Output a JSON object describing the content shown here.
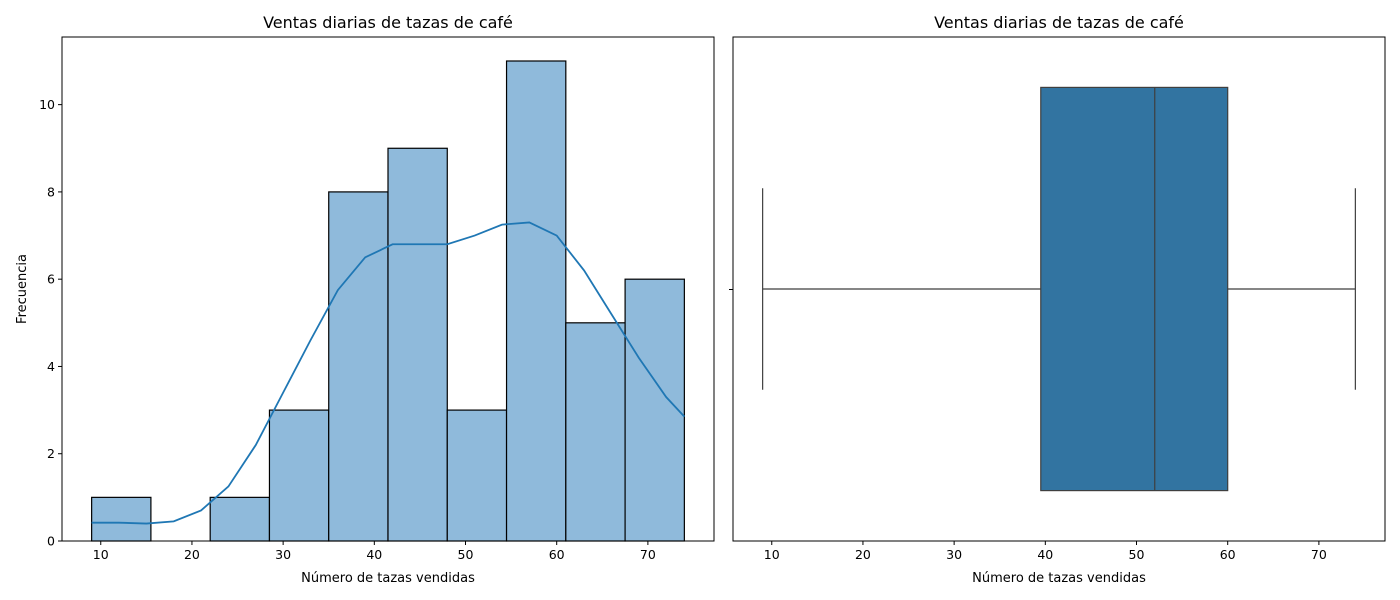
{
  "chart_data": [
    {
      "type": "bar",
      "subtype": "histogram",
      "title": "Ventas diarias de tazas de café",
      "xlabel": "Número de tazas vendidas",
      "ylabel": "Frecuencia",
      "xlim": [
        5.75,
        77.25
      ],
      "ylim": [
        0,
        11.55
      ],
      "xticks": [
        10,
        20,
        30,
        40,
        50,
        60,
        70
      ],
      "yticks": [
        0,
        2,
        4,
        6,
        8,
        10
      ],
      "bins": [
        {
          "x0": 9.0,
          "x1": 15.5,
          "count": 1
        },
        {
          "x0": 15.5,
          "x1": 22.0,
          "count": 0
        },
        {
          "x0": 22.0,
          "x1": 28.5,
          "count": 1
        },
        {
          "x0": 28.5,
          "x1": 35.0,
          "count": 3
        },
        {
          "x0": 35.0,
          "x1": 41.5,
          "count": 8
        },
        {
          "x0": 41.5,
          "x1": 48.0,
          "count": 9
        },
        {
          "x0": 48.0,
          "x1": 54.5,
          "count": 3
        },
        {
          "x0": 54.5,
          "x1": 61.0,
          "count": 11
        },
        {
          "x0": 61.0,
          "x1": 67.5,
          "count": 5
        },
        {
          "x0": 67.5,
          "x1": 74.0,
          "count": 6
        }
      ],
      "kde": {
        "x": [
          9,
          12,
          15,
          18,
          21,
          24,
          27,
          30,
          33,
          36,
          39,
          42,
          45,
          48,
          51,
          54,
          57,
          60,
          63,
          66,
          69,
          72,
          74
        ],
        "y": [
          0.42,
          0.42,
          0.4,
          0.45,
          0.7,
          1.25,
          2.2,
          3.4,
          4.6,
          5.75,
          6.5,
          6.8,
          6.8,
          6.8,
          7.0,
          7.25,
          7.3,
          7.0,
          6.2,
          5.2,
          4.2,
          3.3,
          2.85
        ]
      },
      "colors": {
        "bar_fill": "#8fbadb",
        "bar_edge": "#000000",
        "kde_line": "#1f77b4"
      },
      "grid": false
    },
    {
      "type": "boxplot",
      "title": "Ventas diarias de tazas de café",
      "xlabel": "Número de tazas vendidas",
      "xlim": [
        5.75,
        77.25
      ],
      "xticks": [
        10,
        20,
        30,
        40,
        50,
        60,
        70
      ],
      "box": {
        "whisker_low": 9,
        "q1": 39.5,
        "median": 52,
        "q3": 60,
        "whisker_high": 74
      },
      "colors": {
        "box_fill": "#3274a1",
        "line": "#3f3f3f"
      },
      "grid": false
    }
  ]
}
